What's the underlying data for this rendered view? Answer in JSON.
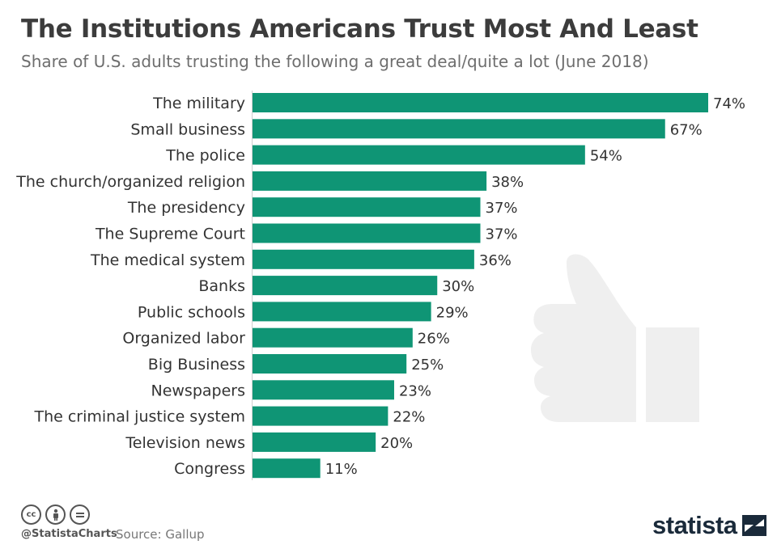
{
  "title": "The Institutions Americans Trust Most And Least",
  "subtitle": "Share of U.S. adults trusting the following a great deal/quite a lot (June 2018)",
  "chart_data": {
    "type": "bar",
    "orientation": "horizontal",
    "categories": [
      "The military",
      "Small business",
      "The police",
      "The church/organized religion",
      "The presidency",
      "The Supreme Court",
      "The medical system",
      "Banks",
      "Public schools",
      "Organized labor",
      "Big Business",
      "Newspapers",
      "The criminal justice system",
      "Television news",
      "Congress"
    ],
    "values": [
      74,
      67,
      54,
      38,
      37,
      37,
      36,
      30,
      29,
      26,
      25,
      23,
      22,
      20,
      11
    ],
    "value_suffix": "%",
    "unit": "%",
    "xlim": [
      0,
      74
    ],
    "bar_color": "#0f9575",
    "title": "The Institutions Americans Trust Most And Least",
    "xlabel": "",
    "ylabel": ""
  },
  "footer": {
    "handle": "@StatistaCharts",
    "source": "Source: Gallup",
    "brand": "statista",
    "license_icons": [
      "cc-icon",
      "attribution-icon",
      "no-derivatives-icon"
    ]
  },
  "colors": {
    "bar": "#0f9575",
    "thumb": "#efefef",
    "brand": "#1a2a3a"
  }
}
